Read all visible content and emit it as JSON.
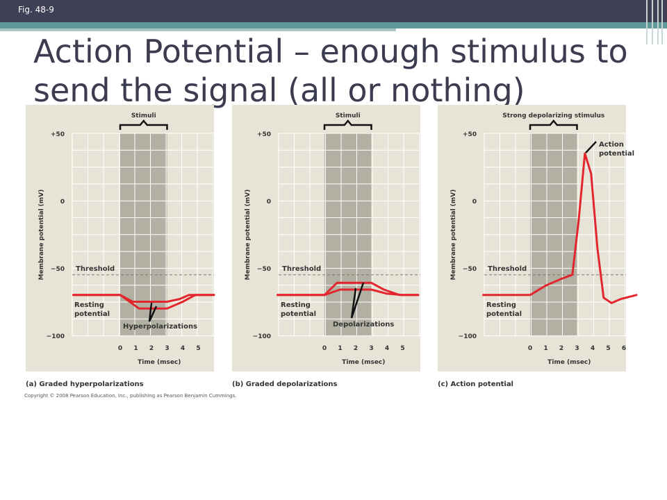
{
  "slide": {
    "fig_label": "Fig. 48-9",
    "title": "Action Potential – enough stimulus to send the signal (all or nothing)",
    "copyright": "Copyright © 2008 Pearson Education, Inc., publishing as Pearson Benjamin Cummings."
  },
  "colors": {
    "curve": "#e3262e",
    "stim": "#b1b0a3",
    "panel": "#e7e4d7",
    "grid": "#ffffff",
    "threshold": "#777777"
  },
  "chart_data": [
    {
      "type": "line",
      "caption": "(a) Graded hyperpolarizations",
      "ylabel": "Membrane potential (mV)",
      "xlabel": "Time (msec)",
      "ytick_labels": [
        "+50",
        "0",
        "−50",
        "−100"
      ],
      "xtick_labels": [
        "0",
        "1",
        "2",
        "3",
        "4",
        "5"
      ],
      "ylim": [
        -100,
        50
      ],
      "stimulus_label": "Stimuli",
      "threshold_label": "Threshold",
      "resting_label": "Resting potential",
      "response_label": "Hyperpolarizations",
      "threshold_mv": -55,
      "resting_mv": -70,
      "stim_window": [
        0,
        3
      ],
      "series": [
        {
          "x": [
            -3,
            0,
            0.8,
            3,
            3.8,
            4.4,
            6
          ],
          "y": [
            -70,
            -70,
            -75,
            -75,
            -73,
            -70,
            -70
          ]
        },
        {
          "x": [
            -3,
            0,
            1.2,
            3,
            4.0,
            4.8,
            6
          ],
          "y": [
            -70,
            -70,
            -80,
            -80,
            -75,
            -70,
            -70
          ]
        }
      ]
    },
    {
      "type": "line",
      "caption": "(b) Graded depolarizations",
      "ylabel": "Membrane potential (mV)",
      "xlabel": "Time (msec)",
      "ytick_labels": [
        "+50",
        "0",
        "−50",
        "−100"
      ],
      "xtick_labels": [
        "0",
        "1",
        "2",
        "3",
        "4",
        "5"
      ],
      "ylim": [
        -100,
        50
      ],
      "stimulus_label": "Stimuli",
      "threshold_label": "Threshold",
      "resting_label": "Resting potential",
      "response_label": "Depolarizations",
      "threshold_mv": -55,
      "resting_mv": -70,
      "stim_window": [
        0,
        3
      ],
      "series": [
        {
          "x": [
            -3,
            0,
            1,
            3,
            4,
            5,
            6
          ],
          "y": [
            -70,
            -70,
            -66,
            -66,
            -69,
            -70,
            -70
          ]
        },
        {
          "x": [
            -3,
            0,
            0.8,
            3,
            3.8,
            4.8,
            6
          ],
          "y": [
            -70,
            -70,
            -61,
            -61,
            -66,
            -70,
            -70
          ]
        }
      ]
    },
    {
      "type": "line",
      "caption": "(c) Action potential",
      "ylabel": "Membrane potential (mV)",
      "xlabel": "Time (msec)",
      "ytick_labels": [
        "+50",
        "0",
        "−50",
        "−100"
      ],
      "xtick_labels": [
        "0",
        "1",
        "2",
        "3",
        "4",
        "5",
        "6"
      ],
      "ylim": [
        -100,
        50
      ],
      "stimulus_label": "Strong depolarizing stimulus",
      "threshold_label": "Threshold",
      "resting_label": "Resting potential",
      "response_label": "Action potential",
      "threshold_mv": -55,
      "resting_mv": -70,
      "stim_window": [
        0,
        3
      ],
      "series": [
        {
          "x": [
            -3,
            0,
            1,
            2,
            2.7,
            3.1,
            3.5,
            3.9,
            4.3,
            4.7,
            5.2,
            5.8,
            6.8
          ],
          "y": [
            -70,
            -70,
            -63,
            -58,
            -55,
            -15,
            35,
            20,
            -35,
            -72,
            -76,
            -73,
            -70
          ]
        }
      ]
    }
  ]
}
